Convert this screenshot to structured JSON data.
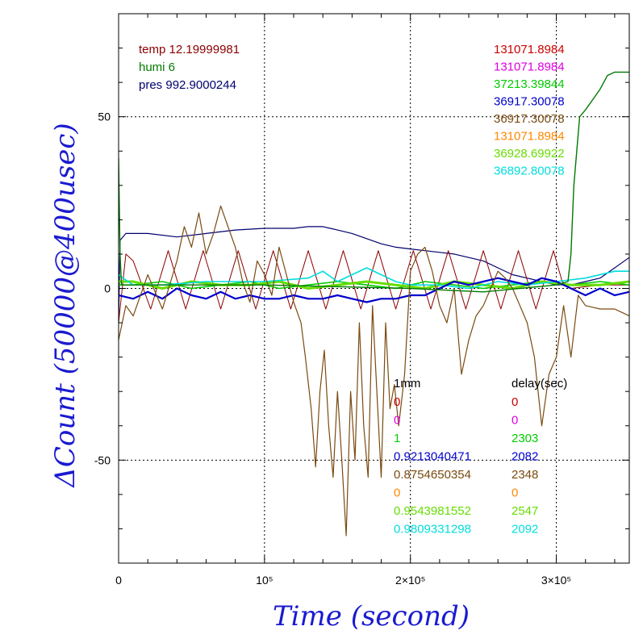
{
  "chart_data": {
    "type": "line",
    "xlabel": "Time (second)",
    "ylabel": "ΔCount (50000@400usec)",
    "xlim": [
      0,
      350000
    ],
    "ylim": [
      -80,
      80
    ],
    "grid": true,
    "x_ticks": [
      {
        "value": 0,
        "label": "0"
      },
      {
        "value": 100000,
        "label": "10⁵"
      },
      {
        "value": 200000,
        "label": "2×10⁵"
      },
      {
        "value": 300000,
        "label": "3×10⁵"
      }
    ],
    "y_ticks": [
      {
        "value": -50,
        "label": "-50"
      },
      {
        "value": 0,
        "label": "0"
      },
      {
        "value": 50,
        "label": "50"
      }
    ],
    "legend_left": [
      {
        "text": "temp 12.19999981",
        "color": "#8b0000"
      },
      {
        "text": "humi 6",
        "color": "#007a00"
      },
      {
        "text": "pres 992.9000244",
        "color": "#00006e"
      }
    ],
    "legend_right": [
      {
        "text": "131071.8984",
        "color": "#cc0000"
      },
      {
        "text": "131071.8984",
        "color": "#e000e0"
      },
      {
        "text": "37213.39844",
        "color": "#00cc00"
      },
      {
        "text": "36917.30078",
        "color": "#0000cc"
      },
      {
        "text": "36917.30078",
        "color": "#7a4a10"
      },
      {
        "text": "131071.8984",
        "color": "#ff8800"
      },
      {
        "text": "36928.69922",
        "color": "#66dd00"
      },
      {
        "text": "36892.80078",
        "color": "#00dddd"
      }
    ],
    "table": {
      "header_1mm": "1mm",
      "header_delay": "delay(sec)",
      "rows": [
        {
          "mm": "0",
          "delay": "0",
          "color": "#cc0000"
        },
        {
          "mm": "0",
          "delay": "0",
          "color": "#e000e0"
        },
        {
          "mm": "1",
          "delay": "2303",
          "color": "#00cc00"
        },
        {
          "mm": "0.9213040471",
          "delay": "2082",
          "color": "#0000cc"
        },
        {
          "mm": "0.8754650354",
          "delay": "2348",
          "color": "#7a4a10"
        },
        {
          "mm": "0",
          "delay": "0",
          "color": "#ff8800"
        },
        {
          "mm": "0.9543981552",
          "delay": "2547",
          "color": "#66dd00"
        },
        {
          "mm": "0.9809331298",
          "delay": "2092",
          "color": "#00dddd"
        }
      ]
    },
    "series": [
      {
        "color": "#00006e",
        "width": 1.2,
        "x": [
          0,
          1000,
          5000,
          20000,
          40000,
          60000,
          80000,
          100000,
          120000,
          130000,
          140000,
          145000,
          150000,
          160000,
          170000,
          180000,
          190000,
          200000,
          210000,
          220000,
          230000,
          240000,
          250000,
          260000,
          270000,
          280000,
          290000,
          300000,
          310000,
          320000,
          330000,
          340000,
          350000
        ],
        "y": [
          -10,
          14,
          16,
          16,
          15,
          16,
          17,
          17.5,
          17.5,
          18,
          18,
          17.5,
          17,
          16,
          14.5,
          13,
          12,
          11.5,
          11,
          10.5,
          10,
          9,
          8,
          6,
          4,
          3,
          2,
          1,
          1,
          2,
          3,
          6,
          9
        ]
      },
      {
        "color": "#8b0000",
        "width": 1,
        "x": [
          0,
          5000,
          10000,
          22000,
          34000,
          46000,
          58000,
          70000,
          82000,
          94000,
          106000,
          118000,
          130000,
          142000,
          154000,
          166000,
          178000,
          190000,
          202000,
          214000,
          226000,
          238000,
          250000,
          262000,
          274000,
          286000,
          298000,
          304000,
          310000,
          330000,
          350000
        ],
        "y": [
          -10,
          10,
          8,
          -6,
          11,
          -6,
          11,
          -6,
          11,
          -6,
          11,
          -6,
          11,
          -6,
          11,
          -6,
          11,
          -6,
          11,
          -6,
          11,
          -6,
          11,
          -6,
          11,
          -6,
          11,
          2,
          0,
          1,
          1
        ]
      },
      {
        "color": "#00cc00",
        "width": 1.6,
        "x": [
          0,
          10000,
          30000,
          50000,
          70000,
          90000,
          110000,
          130000,
          150000,
          170000,
          190000,
          210000,
          230000,
          250000,
          270000,
          290000,
          310000,
          330000,
          350000
        ],
        "y": [
          1,
          1,
          2,
          0,
          1,
          2,
          0,
          1,
          2,
          1,
          0,
          2,
          1,
          0,
          1,
          2,
          1,
          2,
          1
        ]
      },
      {
        "color": "#66dd00",
        "width": 3,
        "x": [
          0,
          10000,
          30000,
          50000,
          70000,
          90000,
          110000,
          130000,
          150000,
          170000,
          190000,
          210000,
          230000,
          250000,
          270000,
          290000,
          310000,
          330000,
          350000
        ],
        "y": [
          2,
          2,
          0,
          2,
          1,
          1,
          2,
          0,
          1,
          2,
          1,
          0,
          2,
          1,
          0,
          2,
          1,
          1,
          2
        ]
      },
      {
        "color": "#00dddd",
        "width": 1.6,
        "x": [
          0,
          3000,
          10000,
          30000,
          60000,
          100000,
          130000,
          140000,
          150000,
          160000,
          170000,
          180000,
          190000,
          200000,
          220000,
          240000,
          260000,
          280000,
          300000,
          320000,
          340000,
          350000
        ],
        "y": [
          4,
          3,
          1,
          1,
          2,
          2,
          3,
          5,
          2,
          4,
          6,
          4,
          2,
          1,
          1,
          0,
          2,
          1,
          2,
          3,
          5,
          5
        ]
      },
      {
        "color": "#0000cc",
        "width": 2.2,
        "x": [
          0,
          10000,
          20000,
          30000,
          40000,
          50000,
          60000,
          70000,
          80000,
          90000,
          100000,
          110000,
          120000,
          130000,
          140000,
          150000,
          160000,
          170000,
          180000,
          190000,
          200000,
          210000,
          220000,
          230000,
          240000,
          250000,
          260000,
          270000,
          280000,
          290000,
          300000,
          310000,
          320000,
          330000,
          340000,
          350000
        ],
        "y": [
          -2,
          -3,
          -1,
          -3,
          0,
          -2,
          -3,
          -1,
          -3,
          -2,
          -3,
          -3,
          -2,
          -3,
          -3,
          -2,
          -3,
          -4,
          -3,
          -3,
          -2,
          -2,
          0,
          2,
          1,
          2,
          3,
          2,
          1,
          3,
          2,
          0,
          -2,
          0,
          -2,
          -1
        ]
      },
      {
        "color": "#7a4a10",
        "width": 1.2,
        "x": [
          0,
          5000,
          10000,
          20000,
          30000,
          40000,
          45000,
          50000,
          55000,
          60000,
          65000,
          70000,
          75000,
          80000,
          85000,
          90000,
          95000,
          100000,
          105000,
          110000,
          115000,
          120000,
          125000,
          128000,
          132000,
          135000,
          138000,
          141000,
          144000,
          147000,
          150000,
          153000,
          156000,
          159000,
          162000,
          165000,
          168000,
          171000,
          174000,
          177000,
          180000,
          183000,
          186000,
          189000,
          192000,
          196000,
          200000,
          205000,
          210000,
          215000,
          220000,
          225000,
          230000,
          235000,
          240000,
          245000,
          250000,
          255000,
          260000,
          265000,
          270000,
          275000,
          280000,
          285000,
          290000,
          295000,
          300000,
          305000,
          310000,
          315000,
          320000,
          330000,
          340000,
          350000
        ],
        "y": [
          -15,
          -5,
          -8,
          4,
          -6,
          8,
          18,
          12,
          22,
          10,
          16,
          24,
          18,
          12,
          2,
          -4,
          8,
          4,
          -2,
          12,
          4,
          -4,
          -10,
          -20,
          -35,
          -52,
          -30,
          -18,
          -40,
          -55,
          -30,
          -50,
          -72,
          -30,
          -50,
          -10,
          -40,
          -55,
          -5,
          -30,
          -55,
          -10,
          -35,
          -28,
          -40,
          -25,
          5,
          10,
          12,
          5,
          -5,
          -10,
          0,
          -25,
          -15,
          -8,
          -5,
          0,
          5,
          3,
          0,
          -5,
          -10,
          -20,
          -40,
          -25,
          -20,
          -5,
          -20,
          -2,
          -5,
          -6,
          -6,
          -8
        ]
      },
      {
        "color": "#007a00",
        "width": 1.4,
        "x": [
          0,
          1000,
          2000,
          5000,
          100000,
          200000,
          250000,
          300000,
          308000,
          310000,
          312000,
          316000,
          320000,
          325000,
          330000,
          335000,
          340000,
          345000,
          350000
        ],
        "y": [
          38,
          10,
          1,
          1,
          1,
          0,
          -1,
          1,
          2,
          10,
          30,
          50,
          52,
          55,
          58,
          62,
          63,
          63,
          63
        ]
      }
    ]
  }
}
